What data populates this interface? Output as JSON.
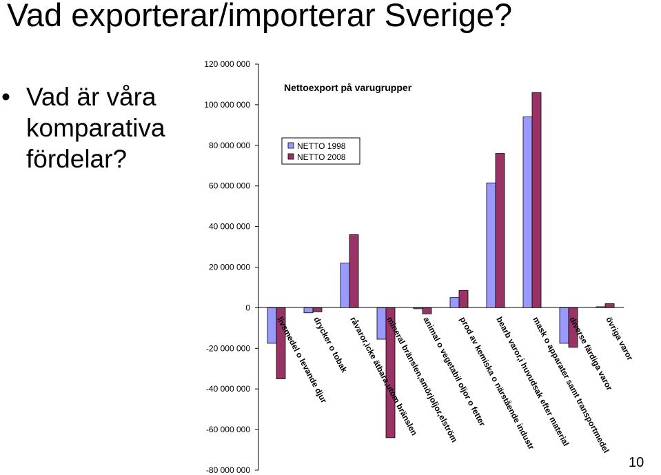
{
  "slide": {
    "title": "Vad exporterar/importerar Sverige?",
    "bullet": "Vad är våra komparativa fördelar?",
    "page_number": "10"
  },
  "chart_data": {
    "type": "bar",
    "title": "Nettoexport på varugrupper",
    "xlabel": "",
    "ylabel": "",
    "ylim": [
      -80000000,
      120000000
    ],
    "yticks": [
      -80000000,
      -60000000,
      -40000000,
      -20000000,
      0,
      20000000,
      40000000,
      60000000,
      80000000,
      100000000,
      120000000
    ],
    "ytick_labels": [
      "-80 000 000",
      "-60 000 000",
      "-40 000 000",
      "-20 000 000",
      "0",
      "20 000 000",
      "40 000 000",
      "60 000 000",
      "80 000 000",
      "100 000 000",
      "120 000 000"
    ],
    "grid": false,
    "legend_position": "top-left",
    "categories": [
      "livsmedel o levande djur",
      "drycker o tobak",
      "råvaror,icke ätbara,utom bränslen",
      "mineral bränslen,smörjoljor,elström",
      "animal o vegetabil oljor o fetter",
      "prod av kemiska o närstående industr",
      "bearb varor,i huvudsak efter material",
      "mask o apparater samt transportmedel",
      "diverse färdiga varor",
      "övriga varor"
    ],
    "series": [
      {
        "name": "NETTO 1998",
        "color": "#9999ff",
        "values": [
          -17500000,
          -2500000,
          22000000,
          -15500000,
          -500000,
          5000000,
          61500000,
          94000000,
          -17500000,
          500000
        ]
      },
      {
        "name": "NETTO 2008",
        "color": "#993366",
        "values": [
          -35000000,
          -2000000,
          36000000,
          -64000000,
          -3000000,
          8500000,
          76000000,
          106000000,
          -19500000,
          2000000
        ]
      }
    ]
  }
}
